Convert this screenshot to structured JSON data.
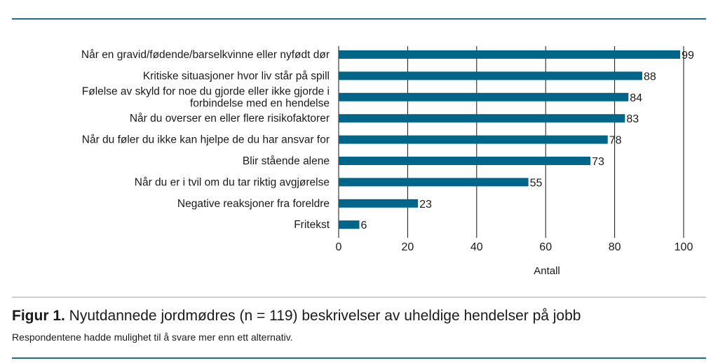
{
  "chart_data": {
    "type": "bar",
    "orientation": "horizontal",
    "categories": [
      [
        "Når en gravid/fødende/barselkvinne eller nyfødt dør"
      ],
      [
        "Kritiske situasjoner hvor liv står på spill"
      ],
      [
        "Følelse av skyld for noe du gjorde eller ikke gjorde i",
        "forbindelse med en hendelse"
      ],
      [
        "Når du overser en eller flere risikofaktorer"
      ],
      [
        "Når du føler du ikke kan hjelpe de du har ansvar for"
      ],
      [
        "Blir stående alene"
      ],
      [
        "Når du er i tvil om du tar riktig avgjørelse"
      ],
      [
        "Negative reaksjoner fra foreldre"
      ],
      [
        "Fritekst"
      ]
    ],
    "values": [
      99,
      88,
      84,
      83,
      78,
      73,
      55,
      23,
      6
    ],
    "xlabel": "Antall",
    "xlim": [
      0,
      100
    ],
    "xticks": [
      0,
      20,
      40,
      60,
      80,
      100
    ],
    "grid": "vertical",
    "bar_color": "#006689",
    "data_labels": true
  },
  "caption": {
    "label": "Figur 1.",
    "text": " Nyutdannede jordmødres (n = 119) beskrivelser av uheldige hendelser på jobb",
    "note": "Respondentene hadde mulighet til å svare mer enn ett alternativ."
  },
  "colors": {
    "rule": "#1f6d8c",
    "divider": "#cfcfcf"
  }
}
